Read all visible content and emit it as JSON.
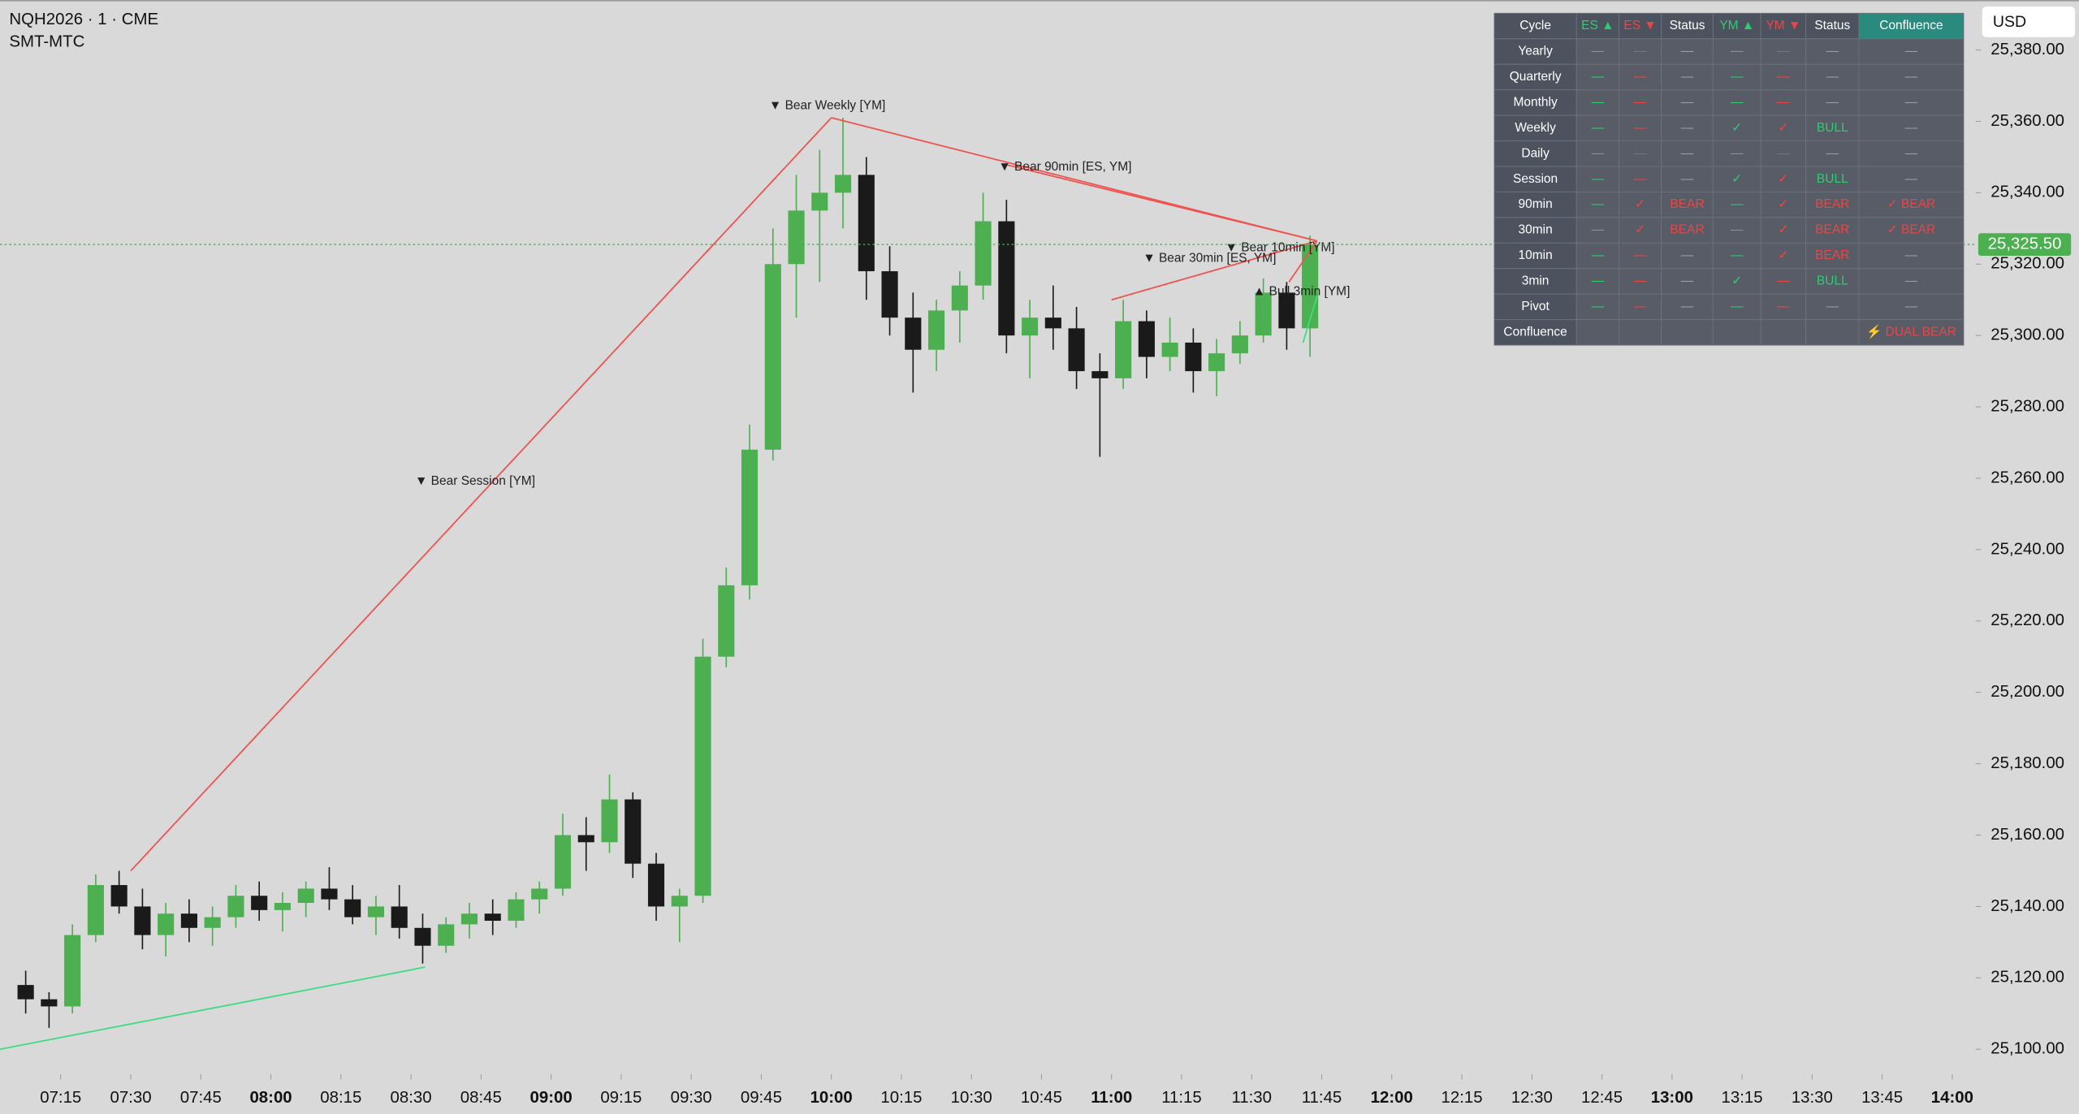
{
  "chart_data": {
    "type": "candlestick",
    "title": "NQH2026 · 1 · CME",
    "subtitle": "SMT-MTC",
    "currency": "USD",
    "xlim": [
      "07:02",
      "14:05"
    ],
    "ylim": [
      25093,
      25394
    ],
    "grid": false,
    "up_color": "#4caf50",
    "down_color": "#1a1a1a",
    "xticks": [
      "07:15",
      "07:30",
      "07:45",
      "08:00",
      "08:15",
      "08:30",
      "08:45",
      "09:00",
      "09:15",
      "09:30",
      "09:45",
      "10:00",
      "10:15",
      "10:30",
      "10:45",
      "11:00",
      "11:15",
      "11:30",
      "11:45",
      "12:00",
      "12:15",
      "12:30",
      "12:45",
      "13:00",
      "13:15",
      "13:30",
      "13:45",
      "14:00"
    ],
    "yticks": [
      {
        "value": 25100,
        "label": "25,100.00"
      },
      {
        "value": 25120,
        "label": "25,120.00"
      },
      {
        "value": 25140,
        "label": "25,140.00"
      },
      {
        "value": 25160,
        "label": "25,160.00"
      },
      {
        "value": 25180,
        "label": "25,180.00"
      },
      {
        "value": 25200,
        "label": "25,200.00"
      },
      {
        "value": 25220,
        "label": "25,220.00"
      },
      {
        "value": 25240,
        "label": "25,240.00"
      },
      {
        "value": 25260,
        "label": "25,260.00"
      },
      {
        "value": 25280,
        "label": "25,280.00"
      },
      {
        "value": 25300,
        "label": "25,300.00"
      },
      {
        "value": 25320,
        "label": "25,320.00"
      },
      {
        "value": 25340,
        "label": "25,340.00"
      },
      {
        "value": 25360,
        "label": "25,360.00"
      },
      {
        "value": 25380,
        "label": "25,380.00"
      }
    ],
    "x": [
      "07:05",
      "07:10",
      "07:15",
      "07:20",
      "07:25",
      "07:30",
      "07:35",
      "07:40",
      "07:45",
      "07:50",
      "07:55",
      "08:00",
      "08:05",
      "08:10",
      "08:15",
      "08:20",
      "08:25",
      "08:30",
      "08:35",
      "08:40",
      "08:45",
      "08:50",
      "08:55",
      "09:00",
      "09:05",
      "09:10",
      "09:15",
      "09:20",
      "09:25",
      "09:30",
      "09:35",
      "09:40",
      "09:45",
      "09:50",
      "09:55",
      "10:00",
      "10:05",
      "10:10",
      "10:15",
      "10:20",
      "10:25",
      "10:30",
      "10:35",
      "10:40",
      "10:45",
      "10:50",
      "10:55",
      "11:00",
      "11:05",
      "11:10",
      "11:15",
      "11:20",
      "11:25",
      "11:30",
      "11:35",
      "11:40"
    ],
    "open": [
      25118,
      25114,
      25112,
      25132,
      25146,
      25140,
      25132,
      25138,
      25134,
      25137,
      25143,
      25139,
      25141,
      25145,
      25142,
      25137,
      25140,
      25134,
      25129,
      25135,
      25138,
      25136,
      25142,
      25145,
      25160,
      25158,
      25170,
      25152,
      25140,
      25143,
      25210,
      25230,
      25268,
      25320,
      25335,
      25340,
      25345,
      25318,
      25305,
      25296,
      25307,
      25314,
      25332,
      25300,
      25305,
      25302,
      25290,
      25288,
      25304,
      25294,
      25298,
      25290,
      25295,
      25300,
      25312,
      25302
    ],
    "high": [
      25122,
      25116,
      25135,
      25149,
      25150,
      25145,
      25141,
      25142,
      25140,
      25146,
      25147,
      25144,
      25147,
      25151,
      25146,
      25143,
      25146,
      25138,
      25137,
      25141,
      25142,
      25144,
      25147,
      25166,
      25165,
      25177,
      25172,
      25155,
      25145,
      25215,
      25235,
      25275,
      25330,
      25345,
      25352,
      25361,
      25350,
      25325,
      25312,
      25310,
      25318,
      25340,
      25338,
      25310,
      25314,
      25308,
      25295,
      25310,
      25307,
      25305,
      25302,
      25299,
      25304,
      25316,
      25315,
      25328
    ],
    "low": [
      25110,
      25106,
      25110,
      25130,
      25138,
      25128,
      25126,
      25130,
      25129,
      25134,
      25136,
      25133,
      25137,
      25139,
      25135,
      25132,
      25131,
      25124,
      25127,
      25131,
      25132,
      25134,
      25138,
      25143,
      25150,
      25155,
      25148,
      25136,
      25130,
      25141,
      25207,
      25226,
      25265,
      25305,
      25315,
      25330,
      25310,
      25300,
      25284,
      25290,
      25298,
      25310,
      25295,
      25288,
      25296,
      25285,
      25266,
      25285,
      25288,
      25290,
      25284,
      25283,
      25292,
      25298,
      25296,
      25294
    ],
    "close": [
      25114,
      25112,
      25132,
      25146,
      25140,
      25132,
      25138,
      25134,
      25137,
      25143,
      25139,
      25141,
      25145,
      25142,
      25137,
      25140,
      25134,
      25129,
      25135,
      25138,
      25136,
      25142,
      25145,
      25160,
      25158,
      25170,
      25152,
      25140,
      25143,
      25210,
      25230,
      25268,
      25320,
      25335,
      25340,
      25345,
      25318,
      25305,
      25296,
      25307,
      25314,
      25332,
      25300,
      25305,
      25302,
      25290,
      25288,
      25304,
      25294,
      25298,
      25290,
      25295,
      25300,
      25312,
      25302,
      25325.5
    ],
    "last_price": {
      "value": 25325.5,
      "label": "25,325.50",
      "color": "#4caf50"
    },
    "annotations": [
      {
        "label": "▼ Bear Session [YM]",
        "color": "#ef5350",
        "x": [
          "07:30",
          "10:00"
        ],
        "y": [
          25150,
          25361
        ]
      },
      {
        "label": "▼ Bear Weekly [YM]",
        "color": "#ef5350",
        "x": [
          "10:00",
          "11:44"
        ],
        "y": [
          25361,
          25326.5
        ]
      },
      {
        "label": "▼ Bear 90min [ES, YM]",
        "color": "#ef5350",
        "x": [
          "10:37",
          "11:44"
        ],
        "y": [
          25348,
          25326.5
        ]
      },
      {
        "label": "▼ Bear 30min [ES, YM]",
        "color": "#ef5350",
        "x": [
          "11:00",
          "11:44"
        ],
        "y": [
          25310,
          25326.5
        ]
      },
      {
        "label": "▼ Bear 10min [YM]",
        "color": "#ef5350",
        "x": [
          "11:38",
          "11:44"
        ],
        "y": [
          25315,
          25326.5
        ]
      },
      {
        "label": "▲ Bull 3min [YM]",
        "color": "#3ddc84",
        "x": [
          "11:41",
          "11:44"
        ],
        "y": [
          25298,
          25311
        ]
      },
      {
        "color": "#3ddc84",
        "x": [
          "07:02",
          "08:33"
        ],
        "y": [
          25100,
          25123
        ]
      }
    ]
  },
  "table": {
    "header": [
      "Cycle",
      "ES ▲",
      "ES ▼",
      "Status",
      "YM ▲",
      "YM ▼",
      "Status",
      "Confluence"
    ],
    "header_colors": [
      "#ffffff",
      "#2ecc71",
      "#ef4444",
      "#ffffff",
      "#2ecc71",
      "#ef4444",
      "#ffffff",
      "#ffffff"
    ],
    "header_backgrounds": [
      "#4d535e",
      "#4d535e",
      "#4d535e",
      "#4d535e",
      "#4d535e",
      "#4d535e",
      "#4d535e",
      "#2a8a7e"
    ],
    "rows": [
      {
        "cycle": "Yearly",
        "cells": [
          "—",
          "—",
          "—",
          "—",
          "—",
          "—",
          "—"
        ],
        "colors": [
          "#2ecc71",
          "#ef4444",
          "#9aa0a8",
          "#2ecc71",
          "#ef4444",
          "#9aa0a8",
          "#9aa0a8"
        ]
      },
      {
        "cycle": "Quarterly",
        "cells": [
          "—",
          "—",
          "—",
          "—",
          "—",
          "—",
          "—"
        ],
        "colors": [
          "#2ecc71",
          "#ef4444",
          "#9aa0a8",
          "#2ecc71",
          "#ef4444",
          "#9aa0a8",
          "#9aa0a8"
        ]
      },
      {
        "cycle": "Monthly",
        "cells": [
          "—",
          "—",
          "—",
          "—",
          "—",
          "—",
          "—"
        ],
        "colors": [
          "#2ecc71",
          "#ef4444",
          "#9aa0a8",
          "#2ecc71",
          "#ef4444",
          "#9aa0a8",
          "#9aa0a8"
        ]
      },
      {
        "cycle": "Weekly",
        "cells": [
          "—",
          "—",
          "—",
          "✓",
          "✓",
          "BULL",
          "—"
        ],
        "colors": [
          "#2ecc71",
          "#ef4444",
          "#9aa0a8",
          "#2ecc71",
          "#ef4444",
          "#2ecc71",
          "#9aa0a8"
        ]
      },
      {
        "cycle": "Daily",
        "cells": [
          "—",
          "—",
          "—",
          "—",
          "—",
          "—",
          "—"
        ],
        "colors": [
          "#2ecc71",
          "#ef4444",
          "#9aa0a8",
          "#2ecc71",
          "#ef4444",
          "#9aa0a8",
          "#9aa0a8"
        ]
      },
      {
        "cycle": "Session",
        "cells": [
          "—",
          "—",
          "—",
          "✓",
          "✓",
          "BULL",
          "—"
        ],
        "colors": [
          "#2ecc71",
          "#ef4444",
          "#9aa0a8",
          "#2ecc71",
          "#ef4444",
          "#2ecc71",
          "#9aa0a8"
        ]
      },
      {
        "cycle": "90min",
        "cells": [
          "—",
          "✓",
          "BEAR",
          "—",
          "✓",
          "BEAR",
          "✓ BEAR"
        ],
        "colors": [
          "#2ecc71",
          "#ef4444",
          "#ef4444",
          "#2ecc71",
          "#ef4444",
          "#ef4444",
          "#ef4444"
        ]
      },
      {
        "cycle": "30min",
        "cells": [
          "—",
          "✓",
          "BEAR",
          "—",
          "✓",
          "BEAR",
          "✓ BEAR"
        ],
        "colors": [
          "#2ecc71",
          "#ef4444",
          "#ef4444",
          "#2ecc71",
          "#ef4444",
          "#ef4444",
          "#ef4444"
        ]
      },
      {
        "cycle": "10min",
        "cells": [
          "—",
          "—",
          "—",
          "—",
          "✓",
          "BEAR",
          "—"
        ],
        "colors": [
          "#2ecc71",
          "#ef4444",
          "#9aa0a8",
          "#2ecc71",
          "#ef4444",
          "#ef4444",
          "#9aa0a8"
        ]
      },
      {
        "cycle": "3min",
        "cells": [
          "—",
          "—",
          "—",
          "✓",
          "—",
          "BULL",
          "—"
        ],
        "colors": [
          "#2ecc71",
          "#ef4444",
          "#9aa0a8",
          "#2ecc71",
          "#ef4444",
          "#2ecc71",
          "#9aa0a8"
        ]
      },
      {
        "cycle": "Pivot",
        "cells": [
          "—",
          "—",
          "—",
          "—",
          "—",
          "—",
          "—"
        ],
        "colors": [
          "#2ecc71",
          "#ef4444",
          "#9aa0a8",
          "#2ecc71",
          "#ef4444",
          "#9aa0a8",
          "#9aa0a8"
        ]
      },
      {
        "cycle": "Confluence",
        "cells": [
          null,
          null,
          null,
          null,
          null,
          null,
          "⚡ DUAL BEAR"
        ],
        "colors": [
          "#9aa0a8",
          "#9aa0a8",
          "#9aa0a8",
          "#9aa0a8",
          "#9aa0a8",
          "#9aa0a8",
          "#ef4444"
        ]
      }
    ]
  }
}
